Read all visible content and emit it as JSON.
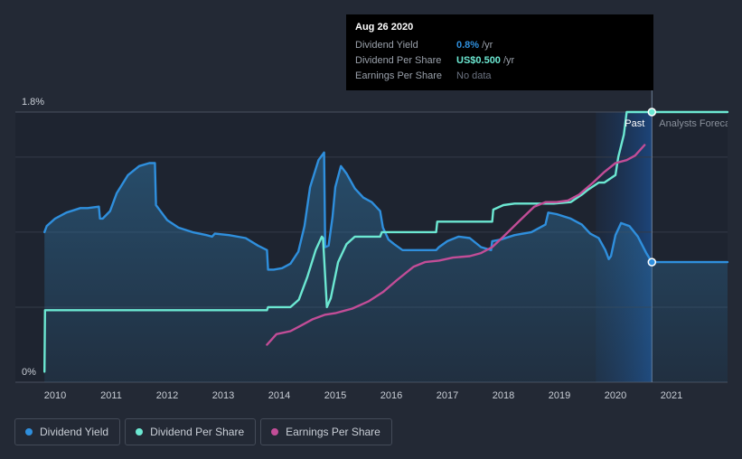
{
  "chart_data": {
    "type": "line",
    "y_ticks": [
      "1.8%",
      "0%"
    ],
    "x_ticks": [
      "2010",
      "2011",
      "2012",
      "2013",
      "2014",
      "2015",
      "2016",
      "2017",
      "2018",
      "2019",
      "2020",
      "2021"
    ],
    "x_range": [
      2009.8,
      2022.0
    ],
    "y_range": [
      0,
      1.8
    ],
    "region_labels": {
      "past": "Past",
      "forecast": "Analysts Forecasts"
    },
    "series": [
      {
        "name": "Dividend Yield",
        "color": "#2f8fdd",
        "points": [
          [
            2009.81,
            1.0
          ],
          [
            2009.85,
            1.04
          ],
          [
            2010.0,
            1.09
          ],
          [
            2010.2,
            1.13
          ],
          [
            2010.45,
            1.16
          ],
          [
            2010.58,
            1.16
          ],
          [
            2010.78,
            1.17
          ],
          [
            2010.8,
            1.09
          ],
          [
            2010.85,
            1.09
          ],
          [
            2010.98,
            1.14
          ],
          [
            2011.1,
            1.26
          ],
          [
            2011.3,
            1.38
          ],
          [
            2011.5,
            1.44
          ],
          [
            2011.68,
            1.46
          ],
          [
            2011.78,
            1.46
          ],
          [
            2011.8,
            1.18
          ],
          [
            2011.9,
            1.13
          ],
          [
            2012.0,
            1.08
          ],
          [
            2012.2,
            1.03
          ],
          [
            2012.45,
            1.0
          ],
          [
            2012.7,
            0.98
          ],
          [
            2012.8,
            0.97
          ],
          [
            2012.85,
            0.99
          ],
          [
            2013.1,
            0.98
          ],
          [
            2013.4,
            0.96
          ],
          [
            2013.62,
            0.91
          ],
          [
            2013.78,
            0.88
          ],
          [
            2013.8,
            0.75
          ],
          [
            2013.9,
            0.75
          ],
          [
            2014.05,
            0.76
          ],
          [
            2014.2,
            0.79
          ],
          [
            2014.34,
            0.87
          ],
          [
            2014.45,
            1.04
          ],
          [
            2014.55,
            1.3
          ],
          [
            2014.7,
            1.48
          ],
          [
            2014.8,
            1.53
          ],
          [
            2014.82,
            0.9
          ],
          [
            2014.88,
            0.91
          ],
          [
            2014.95,
            1.1
          ],
          [
            2015.0,
            1.3
          ],
          [
            2015.1,
            1.44
          ],
          [
            2015.2,
            1.39
          ],
          [
            2015.35,
            1.29
          ],
          [
            2015.5,
            1.23
          ],
          [
            2015.65,
            1.2
          ],
          [
            2015.8,
            1.14
          ],
          [
            2015.85,
            1.03
          ],
          [
            2015.95,
            0.95
          ],
          [
            2016.05,
            0.92
          ],
          [
            2016.2,
            0.88
          ],
          [
            2016.5,
            0.88
          ],
          [
            2016.8,
            0.88
          ],
          [
            2016.85,
            0.9
          ],
          [
            2017.0,
            0.94
          ],
          [
            2017.2,
            0.97
          ],
          [
            2017.4,
            0.96
          ],
          [
            2017.6,
            0.9
          ],
          [
            2017.78,
            0.88
          ],
          [
            2017.8,
            0.94
          ],
          [
            2017.95,
            0.95
          ],
          [
            2018.2,
            0.98
          ],
          [
            2018.5,
            1.0
          ],
          [
            2018.75,
            1.05
          ],
          [
            2018.8,
            1.13
          ],
          [
            2018.95,
            1.12
          ],
          [
            2019.2,
            1.09
          ],
          [
            2019.4,
            1.05
          ],
          [
            2019.55,
            0.99
          ],
          [
            2019.7,
            0.96
          ],
          [
            2019.82,
            0.88
          ],
          [
            2019.88,
            0.82
          ],
          [
            2019.92,
            0.84
          ],
          [
            2020.0,
            0.98
          ],
          [
            2020.1,
            1.06
          ],
          [
            2020.25,
            1.04
          ],
          [
            2020.4,
            0.97
          ],
          [
            2020.55,
            0.86
          ],
          [
            2020.65,
            0.8
          ],
          [
            2022.0,
            0.8
          ]
        ],
        "highlight": [
          2020.65,
          0.8
        ]
      },
      {
        "name": "Dividend Per Share",
        "color": "#6ce8d2",
        "points": [
          [
            2009.81,
            0.07
          ],
          [
            2009.82,
            0.48
          ],
          [
            2011.0,
            0.48
          ],
          [
            2012.0,
            0.48
          ],
          [
            2013.0,
            0.48
          ],
          [
            2013.78,
            0.48
          ],
          [
            2013.8,
            0.5
          ],
          [
            2014.0,
            0.5
          ],
          [
            2014.2,
            0.5
          ],
          [
            2014.35,
            0.55
          ],
          [
            2014.5,
            0.7
          ],
          [
            2014.65,
            0.88
          ],
          [
            2014.76,
            0.97
          ],
          [
            2014.78,
            0.96
          ],
          [
            2014.85,
            0.5
          ],
          [
            2014.92,
            0.56
          ],
          [
            2015.05,
            0.8
          ],
          [
            2015.2,
            0.92
          ],
          [
            2015.35,
            0.97
          ],
          [
            2015.8,
            0.97
          ],
          [
            2015.83,
            1.0
          ],
          [
            2016.8,
            1.0
          ],
          [
            2016.82,
            1.07
          ],
          [
            2017.8,
            1.07
          ],
          [
            2017.82,
            1.15
          ],
          [
            2018.0,
            1.18
          ],
          [
            2018.2,
            1.19
          ],
          [
            2018.75,
            1.19
          ],
          [
            2018.9,
            1.19
          ],
          [
            2019.2,
            1.2
          ],
          [
            2019.4,
            1.25
          ],
          [
            2019.5,
            1.28
          ],
          [
            2019.7,
            1.33
          ],
          [
            2019.8,
            1.33
          ],
          [
            2020.0,
            1.38
          ],
          [
            2020.05,
            1.5
          ],
          [
            2020.15,
            1.65
          ],
          [
            2020.2,
            1.8
          ],
          [
            2020.65,
            1.8
          ],
          [
            2022.0,
            1.8
          ]
        ],
        "highlight": [
          2020.65,
          1.8
        ]
      },
      {
        "name": "Earnings Per Share",
        "color": "#c24d97",
        "points": [
          [
            2013.78,
            0.25
          ],
          [
            2013.95,
            0.32
          ],
          [
            2014.2,
            0.34
          ],
          [
            2014.4,
            0.38
          ],
          [
            2014.6,
            0.42
          ],
          [
            2014.82,
            0.45
          ],
          [
            2015.0,
            0.46
          ],
          [
            2015.3,
            0.49
          ],
          [
            2015.6,
            0.54
          ],
          [
            2015.85,
            0.6
          ],
          [
            2016.1,
            0.68
          ],
          [
            2016.4,
            0.77
          ],
          [
            2016.6,
            0.8
          ],
          [
            2016.85,
            0.81
          ],
          [
            2017.1,
            0.83
          ],
          [
            2017.4,
            0.84
          ],
          [
            2017.6,
            0.86
          ],
          [
            2017.8,
            0.9
          ],
          [
            2018.0,
            0.97
          ],
          [
            2018.3,
            1.08
          ],
          [
            2018.55,
            1.17
          ],
          [
            2018.75,
            1.2
          ],
          [
            2018.95,
            1.2
          ],
          [
            2019.15,
            1.21
          ],
          [
            2019.35,
            1.25
          ],
          [
            2019.6,
            1.33
          ],
          [
            2019.8,
            1.4
          ],
          [
            2020.0,
            1.46
          ],
          [
            2020.2,
            1.48
          ],
          [
            2020.35,
            1.51
          ],
          [
            2020.52,
            1.58
          ]
        ]
      }
    ],
    "tooltip": {
      "date": "Aug 26 2020",
      "rows": [
        {
          "label": "Dividend Yield",
          "value": "0.8%",
          "unit": "/yr"
        },
        {
          "label": "Dividend Per Share",
          "value": "US$0.500",
          "unit": "/yr"
        },
        {
          "label": "Earnings Per Share",
          "value": "No data",
          "unit": ""
        }
      ]
    },
    "grid": true,
    "legend_position": "bottom-left"
  },
  "legend": [
    {
      "label": "Dividend Yield",
      "color": "#2f8fdd"
    },
    {
      "label": "Dividend Per Share",
      "color": "#6ce8d2"
    },
    {
      "label": "Earnings Per Share",
      "color": "#c24d97"
    }
  ]
}
